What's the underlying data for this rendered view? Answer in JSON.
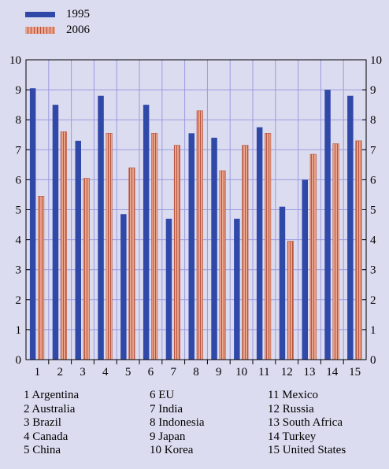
{
  "chart_data": {
    "type": "bar",
    "categories": [
      "1",
      "2",
      "3",
      "4",
      "5",
      "6",
      "7",
      "8",
      "9",
      "10",
      "11",
      "12",
      "13",
      "14",
      "15"
    ],
    "series": [
      {
        "name": "1995",
        "color": "#3049a8",
        "values": [
          9.05,
          8.5,
          7.3,
          8.8,
          4.85,
          8.5,
          4.7,
          7.55,
          7.4,
          4.7,
          7.75,
          5.1,
          6.0,
          9.0,
          8.8
        ]
      },
      {
        "name": "2006",
        "color": "#e9a48c",
        "values": [
          5.45,
          7.6,
          6.05,
          7.55,
          6.4,
          7.55,
          7.15,
          8.3,
          6.3,
          7.15,
          7.55,
          3.95,
          6.85,
          7.2,
          7.3
        ]
      }
    ],
    "ylim": [
      0,
      10
    ],
    "yticks": [
      "0",
      "1",
      "2",
      "3",
      "4",
      "5",
      "6",
      "7",
      "8",
      "9",
      "10"
    ],
    "grid": true,
    "legend": "top-left",
    "category_names": [
      "1 Argentina",
      "2 Australia",
      "3 Brazil",
      "4 Canada",
      "5 China",
      "6 EU",
      "7 India",
      "8 Indonesia",
      "9 Japan",
      "10 Korea",
      "11 Mexico",
      "12 Russia",
      "13 South Africa",
      "14 Turkey",
      "15 United States"
    ]
  }
}
